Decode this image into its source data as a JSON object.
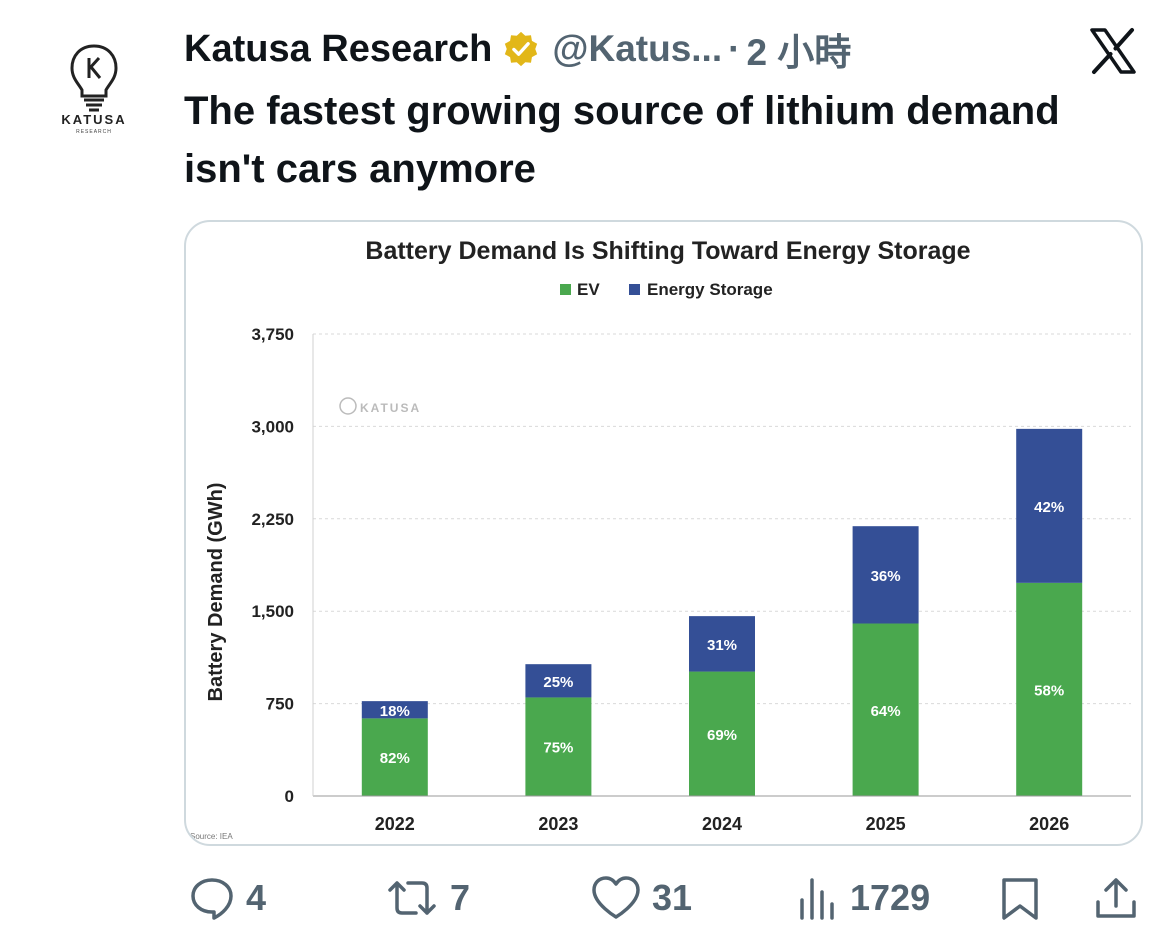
{
  "author": {
    "name": "Katusa Research",
    "handle": "@Katus...",
    "separator": "·",
    "time": "2 小時",
    "avatar_brand": "KATUSA",
    "avatar_brand_sub": "RESEARCH"
  },
  "tweet": {
    "text": "The fastest growing source of lithium demand isn't cars anymore"
  },
  "icons": {
    "verified": "verified-badge-icon",
    "platform": "x-logo-icon",
    "reply": "reply-icon",
    "repost": "repost-icon",
    "like": "like-icon",
    "views": "views-icon",
    "bookmark": "bookmark-icon",
    "share": "share-icon"
  },
  "actions": {
    "replies": "4",
    "reposts": "7",
    "likes": "31",
    "views": "1729"
  },
  "colors": {
    "ev": "#4aa84e",
    "energy_storage": "#344f96",
    "verified_gold": "#e2b719",
    "muted": "#536471"
  },
  "chart_data": {
    "type": "bar",
    "stacked": true,
    "title": "Battery Demand Is Shifting Toward Energy Storage",
    "ylabel": "Battery Demand (GWh)",
    "xlabel": "",
    "ylim": [
      0,
      3750
    ],
    "yticks": [
      "0",
      "750",
      "1,500",
      "2,250",
      "3,000",
      "3,750"
    ],
    "ytick_values": [
      0,
      750,
      1500,
      2250,
      3000,
      3750
    ],
    "categories": [
      "2022",
      "2023",
      "2024",
      "2025",
      "2026"
    ],
    "series": [
      {
        "name": "EV",
        "values": [
          630,
          800,
          1010,
          1400,
          1730
        ],
        "labels": [
          "82%",
          "75%",
          "69%",
          "64%",
          "58%"
        ]
      },
      {
        "name": "Energy Storage",
        "values": [
          140,
          270,
          450,
          790,
          1250
        ],
        "labels": [
          "18%",
          "25%",
          "31%",
          "36%",
          "42%"
        ]
      }
    ],
    "legend_position": "top-center",
    "grid": true,
    "watermark": "KATUSA",
    "source": "Source: IEA"
  }
}
